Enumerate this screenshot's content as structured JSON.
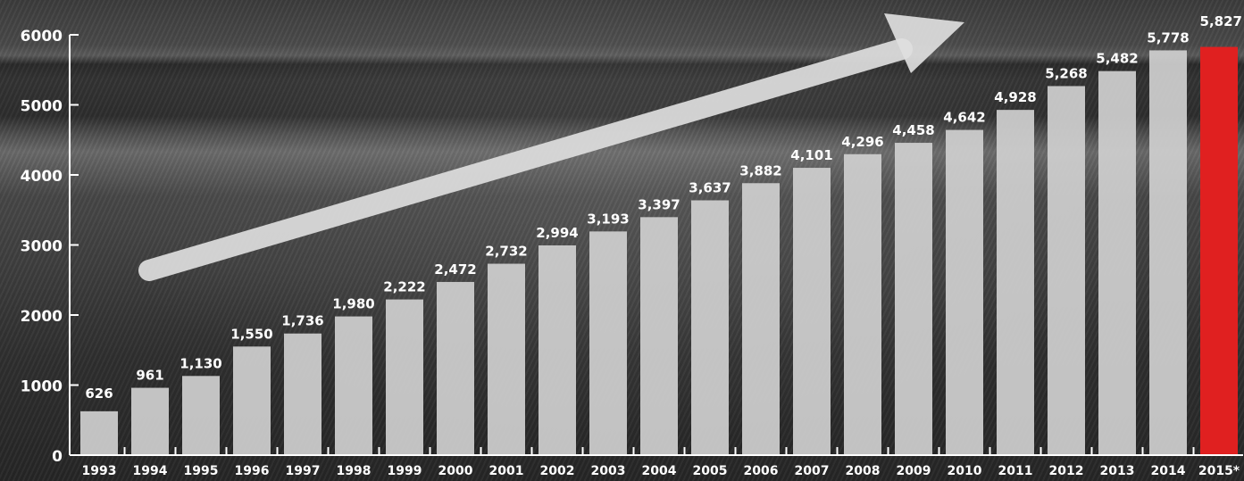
{
  "chart_data": {
    "type": "bar",
    "categories": [
      "1993",
      "1994",
      "1995",
      "1996",
      "1997",
      "1998",
      "1999",
      "2000",
      "2001",
      "2002",
      "2003",
      "2004",
      "2005",
      "2006",
      "2007",
      "2008",
      "2009",
      "2010",
      "2011",
      "2012",
      "2013",
      "2014",
      "2015*"
    ],
    "values": [
      626,
      961,
      1130,
      1550,
      1736,
      1980,
      2222,
      2472,
      2732,
      2994,
      3193,
      3397,
      3637,
      3882,
      4101,
      4296,
      4458,
      4642,
      4928,
      5268,
      5482,
      5778,
      5827
    ],
    "value_labels": [
      "626",
      "961",
      "1,130",
      "1,550",
      "1,736",
      "1,980",
      "2,222",
      "2,472",
      "2,732",
      "2,994",
      "3,193",
      "3,397",
      "3,637",
      "3,882",
      "4,101",
      "4,296",
      "4,458",
      "4,642",
      "4,928",
      "5,268",
      "5,482",
      "5,778",
      "5,827"
    ],
    "y_ticks": [
      "0",
      "1000",
      "2000",
      "3000",
      "4000",
      "5000",
      "6000"
    ],
    "ylim": [
      0,
      6000
    ],
    "highlight_index": 22,
    "colors": {
      "bar": "#cfcfcf",
      "highlight": "#e02020",
      "text": "#ffffff",
      "arrow": "#dedede"
    },
    "decoration": "trend-arrow",
    "grid": false,
    "title": "",
    "xlabel": "",
    "ylabel": ""
  }
}
